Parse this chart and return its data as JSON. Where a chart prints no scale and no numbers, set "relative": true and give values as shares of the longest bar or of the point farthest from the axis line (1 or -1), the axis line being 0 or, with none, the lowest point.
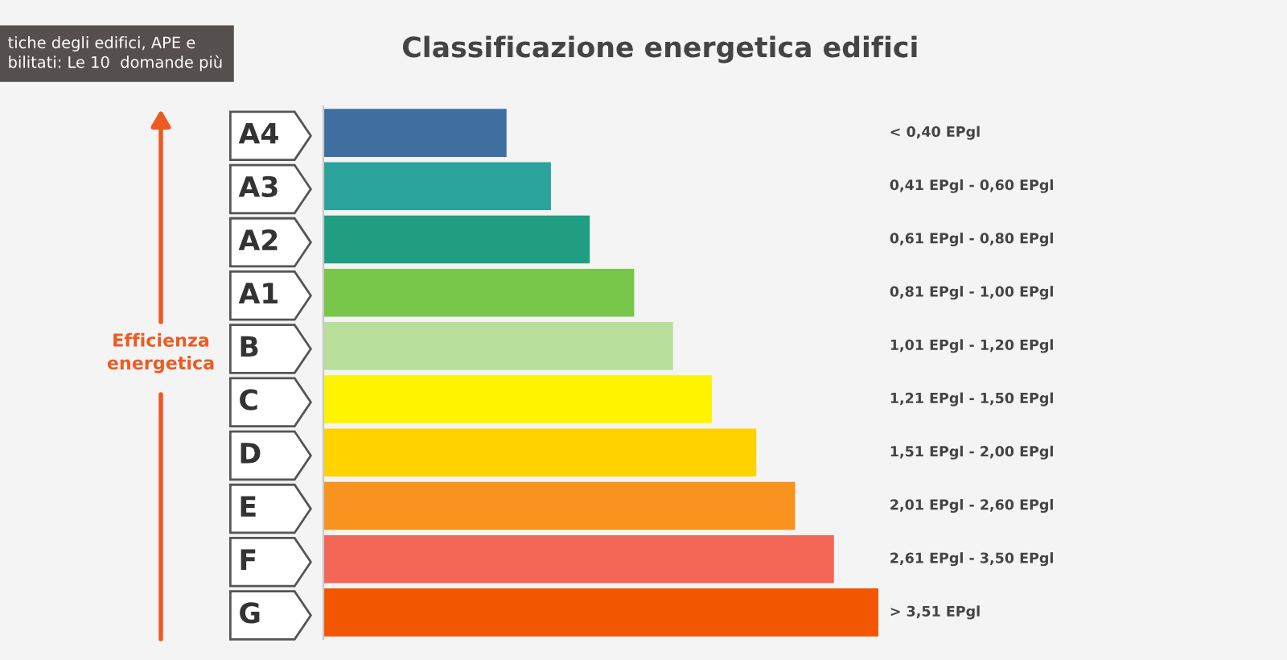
{
  "chart_data": {
    "type": "bar",
    "orientation": "horizontal",
    "relative": true,
    "title": "Classificazione energetica edifici",
    "ylabel": "Efficienza\nenergetica",
    "categories": [
      "A4",
      "A3",
      "A2",
      "A1",
      "B",
      "C",
      "D",
      "E",
      "F",
      "G"
    ],
    "values": [
      0.33,
      0.41,
      0.48,
      0.56,
      0.63,
      0.7,
      0.78,
      0.85,
      0.92,
      1
    ],
    "colors": [
      "#3f6ea0",
      "#2aa39b",
      "#1f9e82",
      "#79c74a",
      "#b9e09b",
      "#fff300",
      "#ffd200",
      "#f7931e",
      "#f26756",
      "#f25700"
    ],
    "annotations": [
      "< 0,40 EPgl",
      "0,41 EPgl - 0,60 EPgl",
      "0,61 EPgl - 0,80 EPgl",
      "0,81 EPgl - 1,00 EPgl",
      "1,01 EPgl - 1,20 EPgl",
      "1,21 EPgl - 1,50 EPgl",
      "1,51 EPgl - 2,00 EPgl",
      "2,01 EPgl - 2,60 EPgl",
      "2,61 EPgl - 3,50 EPgl",
      "> 3,51 EPgl",
      "tiche degli edifici, APE e\nbilitati: Le 10  domande più"
    ],
    "tick_labels": "y",
    "grid": false
  }
}
